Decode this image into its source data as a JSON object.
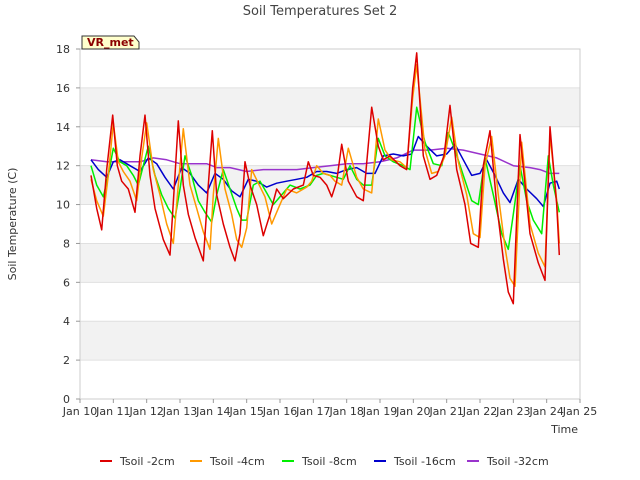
{
  "chart_data": {
    "type": "line",
    "title": "Soil Temperatures Set 2",
    "xlabel": "Time",
    "ylabel": "Soil Temperature (C)",
    "ylim": [
      0,
      18
    ],
    "xlim": [
      10,
      25
    ],
    "y_ticks": [
      0,
      2,
      4,
      6,
      8,
      10,
      12,
      14,
      16,
      18
    ],
    "y_tick_labels": [
      "0",
      "2",
      "4",
      "6",
      "8",
      "10",
      "12",
      "14",
      "16",
      "18"
    ],
    "x_ticks": [
      10,
      11,
      12,
      13,
      14,
      15,
      16,
      17,
      18,
      19,
      20,
      21,
      22,
      23,
      24,
      25
    ],
    "x_tick_labels": [
      "Jan 10",
      "Jan 11",
      "Jan 12",
      "Jan 13",
      "Jan 14",
      "Jan 15",
      "Jan 16",
      "Jan 17",
      "Jan 18",
      "Jan 19",
      "Jan 20",
      "Jan 21",
      "Jan 22",
      "Jan 23",
      "Jan 24",
      "Jan 25"
    ],
    "grid": "horizontal bands",
    "badge": "VR_met",
    "legend_position": "bottom",
    "series": [
      {
        "name": "Tsoil -2cm",
        "color": "#dd0000",
        "x": [
          10.33,
          10.5,
          10.65,
          10.8,
          10.98,
          11.12,
          11.25,
          11.45,
          11.65,
          11.8,
          11.95,
          12.1,
          12.25,
          12.5,
          12.7,
          12.85,
          12.95,
          13.1,
          13.25,
          13.45,
          13.7,
          13.85,
          13.97,
          14.1,
          14.3,
          14.5,
          14.65,
          14.8,
          14.95,
          15.1,
          15.3,
          15.5,
          15.7,
          15.9,
          16.1,
          16.4,
          16.7,
          16.85,
          17.0,
          17.2,
          17.4,
          17.55,
          17.7,
          17.85,
          18.05,
          18.3,
          18.5,
          18.75,
          18.95,
          19.1,
          19.3,
          19.6,
          19.8,
          19.98,
          20.1,
          20.3,
          20.5,
          20.7,
          20.92,
          21.1,
          21.3,
          21.55,
          21.72,
          21.95,
          22.1,
          22.3,
          22.5,
          22.7,
          22.85,
          23.0,
          23.2,
          23.5,
          23.75,
          23.95,
          24.1,
          24.3,
          24.38
        ],
        "y": [
          11.5,
          9.8,
          8.7,
          11.8,
          14.6,
          12.0,
          11.2,
          10.8,
          9.6,
          12.5,
          14.6,
          11.5,
          9.8,
          8.2,
          7.4,
          11.5,
          14.3,
          11.0,
          9.5,
          8.3,
          7.1,
          11.0,
          13.8,
          10.5,
          9.0,
          7.8,
          7.1,
          8.5,
          12.2,
          11.0,
          10.0,
          8.4,
          9.5,
          10.8,
          10.3,
          10.8,
          11.0,
          12.2,
          11.5,
          11.4,
          11.0,
          10.4,
          11.2,
          13.1,
          11.2,
          10.4,
          10.2,
          15.0,
          13.0,
          12.3,
          12.5,
          12.0,
          11.8,
          16.0,
          17.8,
          12.5,
          11.3,
          11.5,
          12.5,
          15.1,
          11.8,
          10.0,
          8.0,
          7.8,
          12.0,
          13.8,
          10.0,
          7.2,
          5.5,
          4.9,
          13.6,
          8.5,
          7.0,
          6.1,
          14.0,
          10.0,
          7.4
        ]
      },
      {
        "name": "Tsoil -4cm",
        "color": "#ff9900",
        "x": [
          10.33,
          10.5,
          10.7,
          10.85,
          11.0,
          11.15,
          11.3,
          11.5,
          11.7,
          11.85,
          12.0,
          12.2,
          12.4,
          12.6,
          12.8,
          12.95,
          13.1,
          13.3,
          13.5,
          13.7,
          13.9,
          14.0,
          14.15,
          14.35,
          14.55,
          14.7,
          14.85,
          15.0,
          15.15,
          15.35,
          15.55,
          15.75,
          15.95,
          16.2,
          16.5,
          16.8,
          16.95,
          17.1,
          17.3,
          17.5,
          17.65,
          17.85,
          18.05,
          18.3,
          18.5,
          18.75,
          18.95,
          19.15,
          19.35,
          19.6,
          19.8,
          19.98,
          20.1,
          20.35,
          20.55,
          20.75,
          20.95,
          21.15,
          21.35,
          21.6,
          21.8,
          22.0,
          22.15,
          22.35,
          22.55,
          22.75,
          22.9,
          23.05,
          23.25,
          23.5,
          23.75,
          23.95,
          24.1,
          24.3,
          24.38
        ],
        "y": [
          11.3,
          10.2,
          9.4,
          11.5,
          14.2,
          12.2,
          11.7,
          11.2,
          10.2,
          12.4,
          14.2,
          11.8,
          10.5,
          9.0,
          8.0,
          11.0,
          13.9,
          11.0,
          9.8,
          8.6,
          7.7,
          10.5,
          13.4,
          10.8,
          9.5,
          8.2,
          7.8,
          8.8,
          11.8,
          11.1,
          10.4,
          9.0,
          9.8,
          10.8,
          10.6,
          10.9,
          11.2,
          12.0,
          11.6,
          11.5,
          11.2,
          11.0,
          12.9,
          11.4,
          10.8,
          10.6,
          14.4,
          12.8,
          12.3,
          12.2,
          11.9,
          15.5,
          17.2,
          12.8,
          11.6,
          11.7,
          12.5,
          14.5,
          12.2,
          10.5,
          8.5,
          8.3,
          12.0,
          13.5,
          10.5,
          7.8,
          6.2,
          5.8,
          13.2,
          9.0,
          7.5,
          6.8,
          13.6,
          10.2,
          8.0
        ]
      },
      {
        "name": "Tsoil -8cm",
        "color": "#00ee00",
        "x": [
          10.33,
          10.5,
          10.7,
          10.85,
          11.0,
          11.2,
          11.4,
          11.6,
          11.75,
          11.9,
          12.05,
          12.25,
          12.45,
          12.65,
          12.85,
          13.0,
          13.15,
          13.35,
          13.55,
          13.75,
          13.95,
          14.1,
          14.3,
          14.5,
          14.7,
          14.85,
          15.0,
          15.2,
          15.4,
          15.6,
          15.8,
          16.0,
          16.3,
          16.6,
          16.9,
          17.1,
          17.3,
          17.5,
          17.7,
          17.9,
          18.1,
          18.3,
          18.5,
          18.75,
          18.95,
          19.15,
          19.4,
          19.7,
          19.9,
          20.1,
          20.35,
          20.6,
          20.85,
          21.05,
          21.25,
          21.5,
          21.75,
          21.95,
          22.15,
          22.4,
          22.65,
          22.85,
          23.0,
          23.2,
          23.4,
          23.6,
          23.85,
          24.05,
          24.2,
          24.38
        ],
        "y": [
          12.0,
          11.0,
          10.4,
          11.5,
          12.9,
          12.2,
          12.0,
          11.5,
          11.0,
          12.0,
          13.0,
          11.5,
          10.5,
          9.8,
          9.3,
          10.8,
          12.5,
          11.5,
          10.2,
          9.6,
          9.1,
          10.5,
          11.8,
          10.8,
          9.8,
          9.2,
          9.2,
          11.0,
          11.2,
          10.6,
          10.0,
          10.4,
          11.0,
          10.8,
          11.0,
          11.5,
          11.6,
          11.5,
          11.4,
          11.3,
          12.0,
          11.3,
          11.0,
          11.0,
          13.4,
          12.5,
          12.2,
          12.0,
          11.8,
          15.0,
          13.2,
          12.1,
          12.0,
          13.7,
          12.8,
          11.5,
          10.2,
          10.0,
          12.4,
          10.5,
          8.5,
          7.7,
          9.5,
          12.0,
          10.2,
          9.2,
          8.5,
          12.5,
          11.0,
          9.6
        ]
      },
      {
        "name": "Tsoil -16cm",
        "color": "#0000cc",
        "x": [
          10.33,
          10.55,
          10.8,
          11.0,
          11.2,
          11.5,
          11.8,
          12.05,
          12.3,
          12.55,
          12.8,
          13.05,
          13.3,
          13.55,
          13.8,
          14.05,
          14.3,
          14.55,
          14.8,
          15.05,
          15.3,
          15.6,
          15.9,
          16.2,
          16.5,
          16.8,
          17.1,
          17.4,
          17.7,
          18.0,
          18.3,
          18.6,
          18.85,
          19.1,
          19.4,
          19.7,
          19.95,
          20.15,
          20.4,
          20.7,
          21.0,
          21.25,
          21.5,
          21.75,
          22.0,
          22.2,
          22.45,
          22.7,
          22.9,
          23.15,
          23.4,
          23.7,
          23.9,
          24.1,
          24.3,
          24.38
        ],
        "y": [
          12.3,
          11.8,
          11.4,
          12.2,
          12.3,
          12.0,
          11.7,
          12.4,
          12.1,
          11.4,
          10.8,
          11.9,
          11.6,
          11.0,
          10.6,
          11.6,
          11.3,
          10.7,
          10.4,
          11.3,
          11.2,
          10.9,
          11.1,
          11.2,
          11.3,
          11.4,
          11.7,
          11.7,
          11.6,
          11.8,
          11.9,
          11.6,
          11.6,
          12.5,
          12.6,
          12.5,
          12.6,
          13.5,
          13.0,
          12.5,
          12.6,
          13.1,
          12.3,
          11.5,
          11.6,
          12.3,
          11.5,
          10.6,
          10.1,
          11.3,
          10.8,
          10.3,
          9.9,
          11.1,
          11.2,
          10.8
        ]
      },
      {
        "name": "Tsoil -32cm",
        "color": "#9933cc",
        "x": [
          10.33,
          10.8,
          11.3,
          11.8,
          12.2,
          12.6,
          13.0,
          13.5,
          13.8,
          14.1,
          14.5,
          15.0,
          15.5,
          16.0,
          16.5,
          17.0,
          17.5,
          18.0,
          18.5,
          19.0,
          19.5,
          20.0,
          20.5,
          21.0,
          21.5,
          22.0,
          22.5,
          23.0,
          23.5,
          23.8,
          24.1,
          24.38
        ],
        "y": [
          12.3,
          12.2,
          12.2,
          12.2,
          12.4,
          12.3,
          12.1,
          12.1,
          12.1,
          11.9,
          11.9,
          11.7,
          11.8,
          11.8,
          11.8,
          11.9,
          12.0,
          12.1,
          12.1,
          12.2,
          12.4,
          12.8,
          12.8,
          12.9,
          12.8,
          12.6,
          12.4,
          12.0,
          11.9,
          11.8,
          11.6,
          11.6
        ]
      }
    ]
  }
}
